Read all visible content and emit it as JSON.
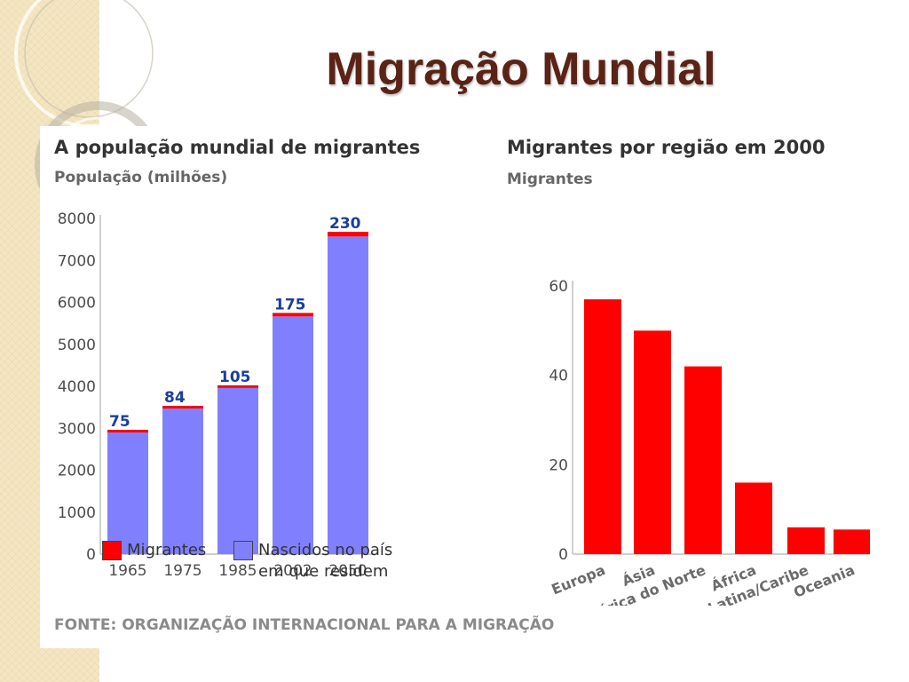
{
  "slide": {
    "title": "Migração Mundial"
  },
  "source_note": "FONTE: ORGANIZAÇÃO INTERNACIONAL PARA A MIGRAÇÃO",
  "colors": {
    "title": "#5a2316",
    "migrants": "#ff0000",
    "native": "#8080ff",
    "value_label": "#1a3f9c",
    "axis_text": "#4d4d4d"
  },
  "chart_data": [
    {
      "type": "bar",
      "stacked": true,
      "title": "A população mundial de migrantes",
      "ylabel": "População (milhões)",
      "categories": [
        "1965",
        "1975",
        "1985",
        "2002",
        "2050"
      ],
      "yticks": [
        "0",
        "1000",
        "2000",
        "3000",
        "4000",
        "5000",
        "6000",
        "7000",
        "8000"
      ],
      "ylim": [
        0,
        8000
      ],
      "value_labels": [
        "75",
        "84",
        "105",
        "175",
        "230"
      ],
      "series": [
        {
          "name": "Nascidos no país em que residem",
          "values": [
            2900,
            3470,
            3960,
            5665,
            7570
          ]
        },
        {
          "name": "Migrantes",
          "values": [
            75,
            84,
            105,
            175,
            230
          ]
        }
      ],
      "legend": [
        {
          "label": "Migrantes",
          "color": "#ff0000"
        },
        {
          "label": "Nascidos no país",
          "label_line2": "em que residem",
          "color": "#8080ff"
        }
      ],
      "legend_position": "bottom",
      "grid": false
    },
    {
      "type": "bar",
      "title": "Migrantes por região em 2000",
      "ylabel": "Migrantes",
      "categories": [
        "Europa",
        "Ásia",
        "América do Norte",
        "África",
        "América Latina/Caribe",
        "Oceania"
      ],
      "values": [
        57,
        50,
        42,
        16,
        6,
        5.5
      ],
      "yticks": [
        "0",
        "20",
        "40",
        "60"
      ],
      "ylim": [
        0,
        60
      ],
      "grid": false
    }
  ]
}
